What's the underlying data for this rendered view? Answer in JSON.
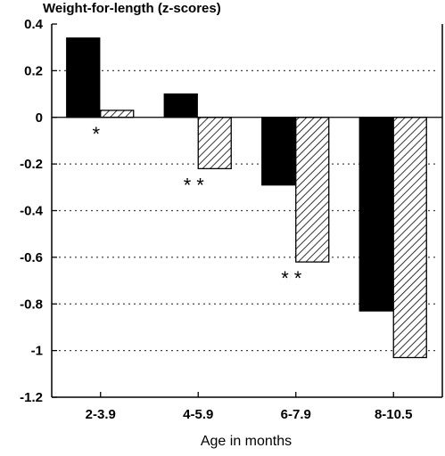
{
  "chart_data": {
    "type": "bar",
    "title": "Weight-for-length (z-scores)",
    "xlabel": "Age in months",
    "ylabel": "",
    "ylim": [
      -1.2,
      0.4
    ],
    "yticks": [
      "0.4",
      "0.2",
      "0",
      "-0.2",
      "-0.4",
      "-0.6",
      "-0.8",
      "-1",
      "-1.2"
    ],
    "categories": [
      "2-3.9",
      "4-5.9",
      "6-7.9",
      "8-10.5"
    ],
    "series": [
      {
        "fill": "solid",
        "color": "#000000",
        "values": [
          0.34,
          0.1,
          -0.29,
          -0.83
        ]
      },
      {
        "fill": "hatched",
        "color": "#000000",
        "values": [
          0.03,
          -0.22,
          -0.62,
          -1.03
        ]
      }
    ],
    "annotations": [
      "*",
      "**",
      "**",
      ""
    ],
    "grid": "dotted"
  }
}
